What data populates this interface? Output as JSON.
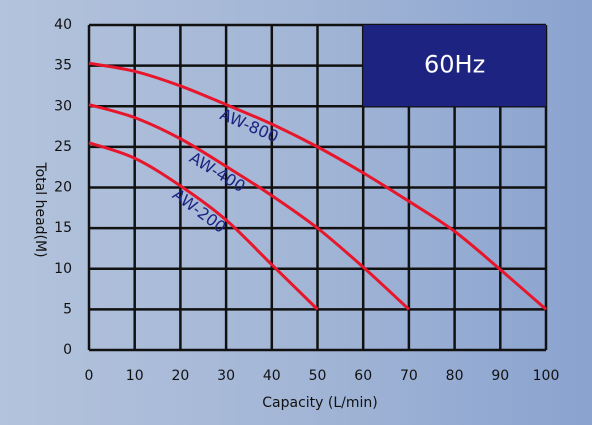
{
  "chart_data": {
    "type": "line",
    "annotation": "60Hz",
    "x_label": "Capacity (L/min)",
    "y_label": "Total head(M)",
    "xlim": [
      0,
      100
    ],
    "xticks": [
      0,
      10,
      20,
      30,
      40,
      50,
      60,
      70,
      80,
      90,
      100
    ],
    "ylim": [
      0,
      40
    ],
    "yticks": [
      0,
      5,
      10,
      15,
      20,
      25,
      30,
      35,
      40
    ],
    "grid": true,
    "series": [
      {
        "name": "AW-800",
        "color": "#e8162b",
        "x": [
          0,
          10,
          20,
          30,
          40,
          50,
          60,
          70,
          80,
          90,
          100
        ],
        "values": [
          35.3,
          34.3,
          32.5,
          30.2,
          27.8,
          25,
          21.8,
          18.3,
          14.6,
          9.9,
          5
        ]
      },
      {
        "name": "AW-400",
        "color": "#e8162b",
        "x": [
          0,
          10,
          20,
          30,
          40,
          50,
          60,
          70
        ],
        "values": [
          30.2,
          28.6,
          26,
          22.6,
          19,
          15,
          10.2,
          5
        ]
      },
      {
        "name": "AW-200",
        "color": "#e8162b",
        "x": [
          0,
          10,
          20,
          30,
          40,
          50
        ],
        "values": [
          25.5,
          23.6,
          20.2,
          16,
          10.5,
          5
        ]
      }
    ]
  }
}
